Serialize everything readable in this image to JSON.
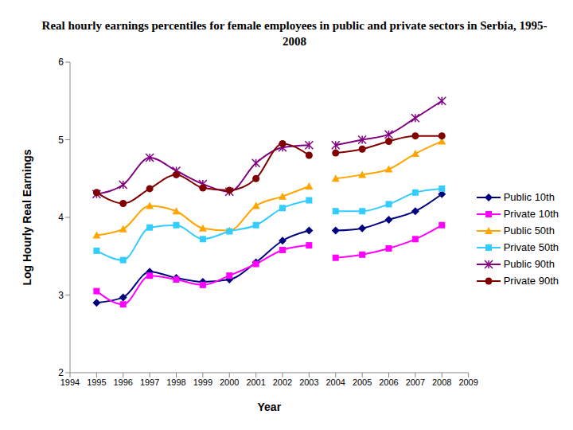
{
  "chart_data": {
    "type": "line",
    "title": "Real hourly earnings percentiles for female employees in public and private sectors in Serbia, 1995-2008",
    "x_label": "Year",
    "y_label": "Log Hourly Real Earnings",
    "x": [
      1995,
      1996,
      1997,
      1998,
      1999,
      2000,
      2001,
      2002,
      2003,
      null,
      2004,
      2005,
      2006,
      2007,
      2008
    ],
    "xlim": [
      1994,
      2009
    ],
    "xticks": [
      1994,
      1995,
      1996,
      1997,
      1998,
      1999,
      2000,
      2001,
      2002,
      2003,
      2004,
      2005,
      2006,
      2007,
      2008,
      2009
    ],
    "ylim": [
      2,
      6
    ],
    "yticks": [
      2,
      3,
      4,
      5,
      6
    ],
    "grid": false,
    "legend": "right",
    "series": [
      {
        "name": "Public 10th",
        "color": "#000080",
        "marker": "diamond",
        "values": [
          2.9,
          2.97,
          3.3,
          3.22,
          3.17,
          3.2,
          3.42,
          3.7,
          3.83,
          null,
          3.83,
          3.86,
          3.97,
          4.08,
          4.3
        ]
      },
      {
        "name": "Private 10th",
        "color": "#FF00FF",
        "marker": "square",
        "values": [
          3.05,
          2.88,
          3.25,
          3.2,
          3.13,
          3.25,
          3.4,
          3.58,
          3.64,
          null,
          3.48,
          3.52,
          3.6,
          3.72,
          3.9
        ]
      },
      {
        "name": "Public 50th",
        "color": "#FFA500",
        "marker": "triangle",
        "values": [
          3.77,
          3.85,
          4.15,
          4.08,
          3.86,
          3.83,
          4.15,
          4.27,
          4.4,
          null,
          4.5,
          4.55,
          4.62,
          4.82,
          4.98
        ]
      },
      {
        "name": "Private 50th",
        "color": "#33CCFF",
        "marker": "square",
        "values": [
          3.57,
          3.45,
          3.87,
          3.9,
          3.72,
          3.82,
          3.9,
          4.12,
          4.22,
          null,
          4.08,
          4.08,
          4.17,
          4.32,
          4.37
        ]
      },
      {
        "name": "Public 90th",
        "color": "#800080",
        "marker": "star",
        "values": [
          4.3,
          4.42,
          4.77,
          4.6,
          4.43,
          4.33,
          4.7,
          4.9,
          4.93,
          null,
          4.93,
          5.0,
          5.07,
          5.28,
          5.5
        ]
      },
      {
        "name": "Private 90th",
        "color": "#800000",
        "marker": "circle",
        "values": [
          4.32,
          4.18,
          4.37,
          4.55,
          4.38,
          4.35,
          4.5,
          4.95,
          4.8,
          null,
          4.83,
          4.88,
          4.98,
          5.05,
          5.05
        ]
      }
    ]
  }
}
